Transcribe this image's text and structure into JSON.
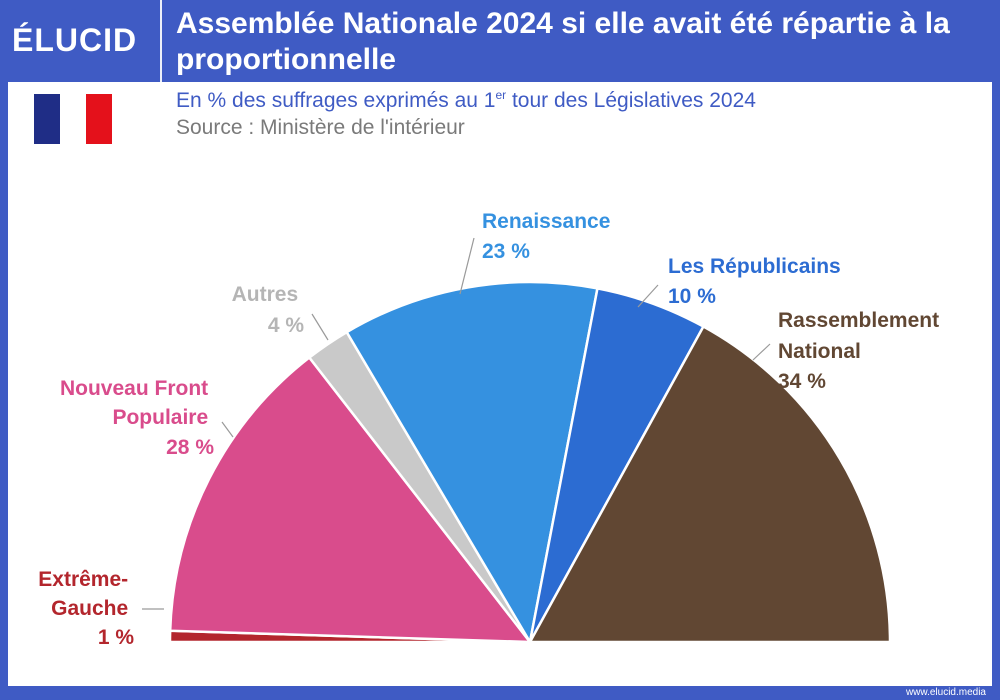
{
  "brand": {
    "logo": "ÉLUCID",
    "footer_url": "www.elucid.media"
  },
  "header": {
    "title": "Assemblée Nationale 2024 si elle avait été répartie à la proportionnelle"
  },
  "subtitle": {
    "text_before": "En % des suffrages exprimés au 1",
    "sup": "er",
    "text_after": " tour des Législatives 2024"
  },
  "source": "Source : Ministère de l'intérieur",
  "colors": {
    "brand": "#3f5bc4"
  },
  "chart_data": {
    "type": "pie",
    "shape": "half-donut (hemicycle)",
    "series": [
      {
        "name": "Extrême-Gauche",
        "value": 1,
        "label": "1 %",
        "color": "#b3262d"
      },
      {
        "name": "Nouveau Front Populaire",
        "value": 28,
        "label": "28 %",
        "color": "#d94c8c"
      },
      {
        "name": "Autres",
        "value": 4,
        "label": "4 %",
        "color": "#c9c9c9"
      },
      {
        "name": "Renaissance",
        "value": 23,
        "label": "23 %",
        "color": "#3591e0"
      },
      {
        "name": "Les Républicains",
        "value": 10,
        "label": "10 %",
        "color": "#2c6cd2"
      },
      {
        "name": "Rassemblement National",
        "value": 34,
        "label": "34 %",
        "color": "#614733"
      }
    ]
  }
}
